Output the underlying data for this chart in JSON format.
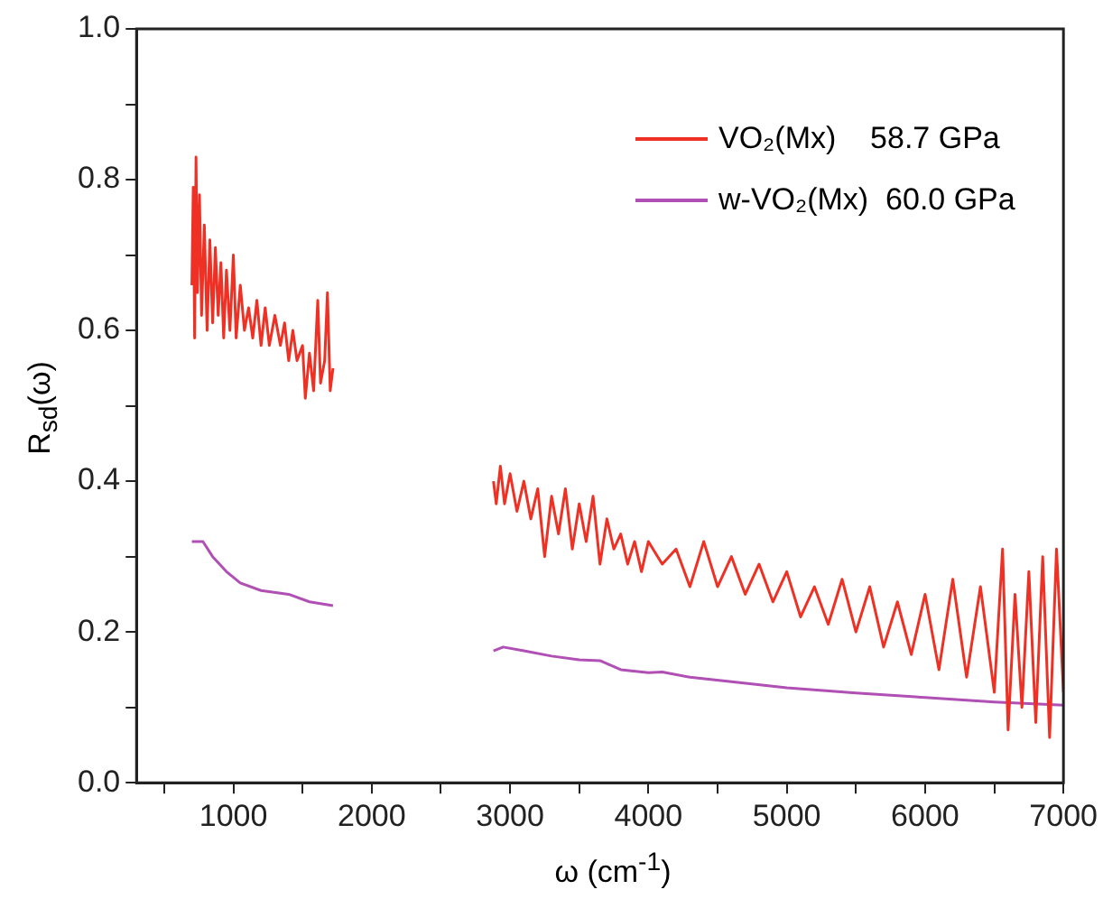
{
  "chart_data": {
    "type": "line",
    "xlabel": "ω (cm$^{-1}$)",
    "ylabel": "R$_{sd}$(ω)",
    "xlim": [
      300,
      7000
    ],
    "ylim": [
      0,
      1
    ],
    "xticks": [
      {
        "value": 500,
        "label": null
      },
      1000,
      {
        "value": 1500,
        "label": null
      },
      2000,
      {
        "value": 2500,
        "label": null
      },
      3000,
      {
        "value": 3500,
        "label": null
      },
      4000,
      {
        "value": 4500,
        "label": null
      },
      5000,
      {
        "value": 5500,
        "label": null
      },
      6000,
      {
        "value": 6500,
        "label": null
      },
      7000
    ],
    "yticks": [
      {
        "value": 0,
        "label": "0.0"
      },
      {
        "value": 0.1,
        "label": null
      },
      0.2,
      {
        "value": 0.3,
        "label": null
      },
      0.4,
      {
        "value": 0.5,
        "label": null
      },
      0.6,
      {
        "value": 0.7,
        "label": null
      },
      0.8,
      {
        "value": 0.9,
        "label": null
      },
      {
        "value": 1,
        "label": "1.0"
      }
    ],
    "grid": false,
    "legend": "top right",
    "marker": "none",
    "line_style": "solid",
    "series": [
      {
        "name": "VO₂(Mx)    58.7 GPa",
        "color": "#ee3124",
        "x": [
          700,
          710,
          720,
          730,
          740,
          755,
          770,
          790,
          810,
          830,
          850,
          870,
          890,
          910,
          930,
          950,
          975,
          1000,
          1020,
          1050,
          1080,
          1110,
          1140,
          1170,
          1200,
          1230,
          1260,
          1300,
          1340,
          1370,
          1400,
          1430,
          1460,
          1500,
          1520,
          1550,
          1580,
          1610,
          1630,
          1660,
          1680,
          1700,
          1720,
          2300,
          2880,
          2900,
          2930,
          2960,
          3000,
          3050,
          3100,
          3150,
          3200,
          3250,
          3300,
          3350,
          3400,
          3450,
          3500,
          3550,
          3600,
          3650,
          3700,
          3750,
          3800,
          3850,
          3900,
          3950,
          4000,
          4100,
          4200,
          4300,
          4400,
          4500,
          4600,
          4700,
          4800,
          4900,
          5000,
          5100,
          5200,
          5300,
          5400,
          5500,
          5600,
          5700,
          5800,
          5900,
          6000,
          6100,
          6200,
          6300,
          6400,
          6500,
          6560,
          6600,
          6650,
          6700,
          6750,
          6800,
          6850,
          6900,
          6950,
          7000
        ],
        "values": [
          0.66,
          0.79,
          0.59,
          0.83,
          0.65,
          0.78,
          0.62,
          0.74,
          0.6,
          0.72,
          0.61,
          0.71,
          0.62,
          0.69,
          0.59,
          0.68,
          0.6,
          0.7,
          0.59,
          0.66,
          0.6,
          0.63,
          0.59,
          0.64,
          0.58,
          0.63,
          0.58,
          0.62,
          0.58,
          0.61,
          0.56,
          0.6,
          0.56,
          0.58,
          0.51,
          0.57,
          0.52,
          0.64,
          0.53,
          0.56,
          0.65,
          0.52,
          0.55,
          null,
          0.4,
          0.37,
          0.42,
          0.37,
          0.41,
          0.36,
          0.4,
          0.35,
          0.39,
          0.3,
          0.38,
          0.33,
          0.39,
          0.31,
          0.37,
          0.32,
          0.38,
          0.29,
          0.35,
          0.31,
          0.33,
          0.29,
          0.32,
          0.28,
          0.32,
          0.29,
          0.31,
          0.26,
          0.32,
          0.26,
          0.3,
          0.25,
          0.29,
          0.24,
          0.28,
          0.22,
          0.26,
          0.21,
          0.27,
          0.2,
          0.26,
          0.18,
          0.24,
          0.17,
          0.25,
          0.15,
          0.27,
          0.14,
          0.26,
          0.12,
          0.31,
          0.07,
          0.25,
          0.1,
          0.28,
          0.08,
          0.3,
          0.06,
          0.31,
          0.12
        ]
      },
      {
        "name": "w-VO₂(Mx)  60.0 GPa",
        "color": "#b04fb4",
        "x": [
          700,
          780,
          850,
          950,
          1050,
          1200,
          1400,
          1550,
          1720,
          2300,
          2880,
          2950,
          3100,
          3300,
          3500,
          3650,
          3800,
          4000,
          4100,
          4300,
          4600,
          5000,
          5500,
          6000,
          6500,
          7000
        ],
        "values": [
          0.32,
          0.32,
          0.3,
          0.28,
          0.265,
          0.255,
          0.25,
          0.24,
          0.235,
          null,
          0.175,
          0.18,
          0.175,
          0.168,
          0.163,
          0.162,
          0.15,
          0.146,
          0.147,
          0.14,
          0.134,
          0.126,
          0.119,
          0.113,
          0.107,
          0.103
        ]
      }
    ]
  }
}
